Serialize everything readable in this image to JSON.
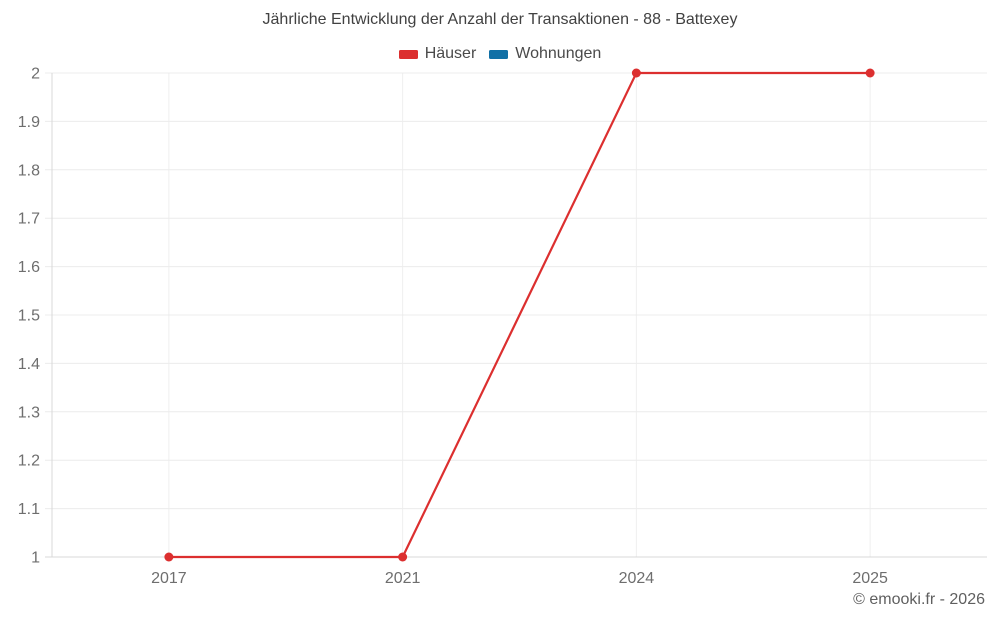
{
  "chart_data": {
    "type": "line",
    "title": "Jährliche Entwicklung der Anzahl der Transaktionen - 88 - Battexey",
    "categories": [
      "2017",
      "2021",
      "2024",
      "2025"
    ],
    "series": [
      {
        "name": "Häuser",
        "color": "#dc2f2f",
        "marker": "circle",
        "values": [
          1,
          1,
          2,
          2
        ]
      },
      {
        "name": "Wohnungen",
        "color": "#1170a6",
        "marker": "circle",
        "values": []
      }
    ],
    "ylim": [
      1,
      2
    ],
    "ytick_values": [
      1,
      1.1,
      1.2,
      1.3,
      1.4,
      1.5,
      1.6,
      1.7,
      1.8,
      1.9,
      2
    ],
    "ytick_labels": [
      "1",
      "1.1",
      "1.2",
      "1.3",
      "1.4",
      "1.5",
      "1.6",
      "1.7",
      "1.8",
      "1.9",
      "2"
    ],
    "xlabel": "",
    "ylabel": "",
    "grid": true,
    "legend_position": "top"
  },
  "footer": {
    "copyright": "© emooki.fr - 2026"
  },
  "colors": {
    "background": "#ffffff",
    "grid": "#ececec",
    "grid_vertical": "#efefef",
    "axis": "#d8d8d8",
    "tick_label": "#6e6e6e",
    "title": "#414141",
    "legend_label": "#4a4a4a",
    "footer": "#5f5f5f"
  }
}
